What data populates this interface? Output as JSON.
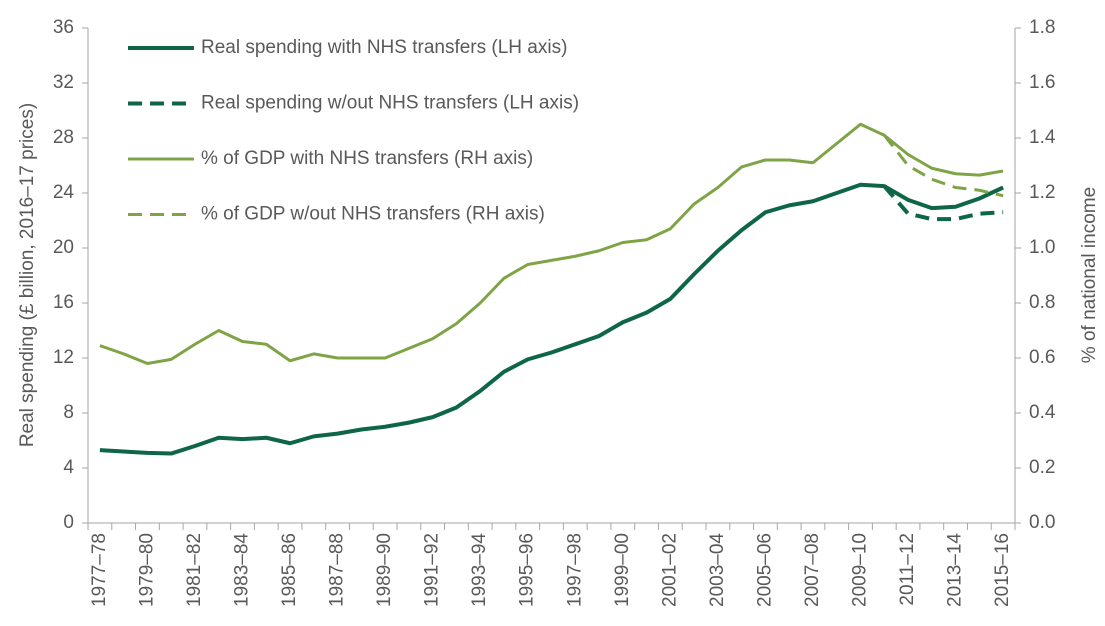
{
  "chart_data": {
    "type": "line",
    "y_label": "Real spending (£ billion, 2016–17 prices)",
    "y2_label": "% of national income",
    "categories": [
      "1977–78",
      null,
      "1979–80",
      null,
      "1981–82",
      null,
      "1983–84",
      null,
      "1985–86",
      null,
      "1987–88",
      null,
      "1989–90",
      null,
      "1991–92",
      null,
      "1993–94",
      null,
      "1995–96",
      null,
      "1997–98",
      null,
      "1999–00",
      null,
      "2001–02",
      null,
      "2003–04",
      null,
      "2005–06",
      null,
      "2007–08",
      null,
      "2009–10",
      null,
      "2011–12",
      null,
      "2013–14",
      null,
      "2015–16"
    ],
    "ylim": [
      0,
      36
    ],
    "yticks": [
      0,
      4,
      8,
      12,
      16,
      20,
      24,
      28,
      32,
      36
    ],
    "y2lim": [
      0,
      1.8
    ],
    "y2ticks": [
      {
        "value": 0,
        "label": "0.0"
      },
      0.2,
      0.4,
      0.6,
      0.8,
      {
        "value": 1,
        "label": "1.0"
      },
      1.2,
      1.4,
      1.6,
      1.8
    ],
    "legend": "upper left",
    "series": [
      {
        "name": "Real spending with NHS transfers (LH axis)",
        "color": "#0e6647",
        "linestyle": "solid",
        "axis": "y",
        "values": [
          5.3,
          5.2,
          5.1,
          5.05,
          5.6,
          6.2,
          6.1,
          6.2,
          5.8,
          6.3,
          6.5,
          6.8,
          7.0,
          7.3,
          7.7,
          8.4,
          9.6,
          11.0,
          11.9,
          12.4,
          13.0,
          13.6,
          14.6,
          15.3,
          16.3,
          18.1,
          19.8,
          21.3,
          22.6,
          23.1,
          23.4,
          24.0,
          24.6,
          24.5,
          23.5,
          22.9,
          23.0,
          23.6,
          24.4
        ]
      },
      {
        "name": "Real spending w/out NHS transfers (LH axis)",
        "color": "#0e6647",
        "linestyle": "dashed",
        "axis": "y",
        "values": [
          null,
          null,
          null,
          null,
          null,
          null,
          null,
          null,
          null,
          null,
          null,
          null,
          null,
          null,
          null,
          null,
          null,
          null,
          null,
          null,
          null,
          null,
          null,
          null,
          null,
          null,
          null,
          null,
          null,
          null,
          null,
          null,
          null,
          24.5,
          22.5,
          22.1,
          22.1,
          22.5,
          22.6
        ]
      },
      {
        "name": "% of GDP with NHS transfers (RH axis)",
        "color": "#7ea446",
        "linestyle": "solid",
        "axis": "y2",
        "values": [
          0.645,
          0.615,
          0.58,
          0.595,
          0.65,
          0.7,
          0.66,
          0.65,
          0.59,
          0.615,
          0.6,
          0.6,
          0.6,
          0.635,
          0.67,
          0.725,
          0.8,
          0.89,
          0.94,
          0.955,
          0.97,
          0.99,
          1.02,
          1.03,
          1.07,
          1.16,
          1.22,
          1.295,
          1.32,
          1.32,
          1.31,
          1.38,
          1.45,
          1.41,
          1.34,
          1.29,
          1.27,
          1.265,
          1.28
        ]
      },
      {
        "name": "% of GDP w/out NHS transfers (RH axis)",
        "color": "#7ea446",
        "linestyle": "dashed",
        "axis": "y2",
        "values": [
          null,
          null,
          null,
          null,
          null,
          null,
          null,
          null,
          null,
          null,
          null,
          null,
          null,
          null,
          null,
          null,
          null,
          null,
          null,
          null,
          null,
          null,
          null,
          null,
          null,
          null,
          null,
          null,
          null,
          null,
          null,
          null,
          null,
          1.41,
          1.3,
          1.25,
          1.22,
          1.21,
          1.19
        ]
      }
    ]
  }
}
